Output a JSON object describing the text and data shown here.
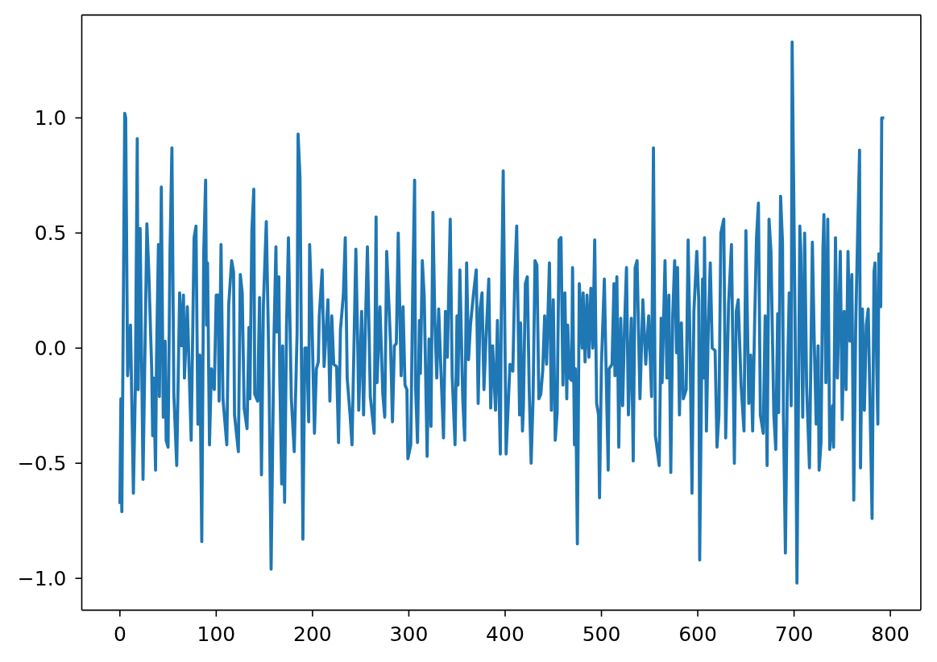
{
  "chart_data": {
    "type": "line",
    "color": "#1f77b4",
    "x": [
      0,
      1,
      2,
      5,
      6,
      8,
      11,
      14,
      16,
      18,
      19,
      21,
      24,
      28,
      30,
      33,
      34,
      35,
      37,
      38,
      40,
      41,
      43,
      45,
      47,
      48,
      50,
      52,
      54,
      56,
      59,
      62,
      64,
      66,
      67,
      70,
      74,
      77,
      79,
      81,
      83,
      85,
      87,
      89,
      90,
      91,
      93,
      95,
      98,
      100,
      102,
      103,
      105,
      107,
      111,
      113,
      116,
      118,
      119,
      123,
      125,
      127,
      129,
      132,
      134,
      135,
      137,
      139,
      140,
      143,
      145,
      147,
      149,
      152,
      154,
      155,
      157,
      160,
      162,
      163,
      165,
      166,
      168,
      169,
      171,
      173,
      175,
      178,
      181,
      184,
      185,
      187,
      190,
      192,
      194,
      196,
      197,
      199,
      202,
      204,
      206,
      207,
      210,
      212,
      216,
      218,
      220,
      222,
      225,
      227,
      229,
      232,
      234,
      236,
      239,
      241,
      245,
      247,
      248,
      251,
      253,
      255,
      257,
      260,
      264,
      266,
      267,
      270,
      273,
      275,
      277,
      281,
      283,
      285,
      287,
      289,
      292,
      294,
      296,
      298,
      299,
      302,
      304,
      306,
      307,
      309,
      311,
      312,
      314,
      316,
      319,
      321,
      323,
      325,
      327,
      329,
      331,
      333,
      336,
      338,
      340,
      343,
      345,
      348,
      350,
      351,
      353,
      356,
      358,
      360,
      362,
      364,
      367,
      370,
      372,
      374,
      376,
      378,
      380,
      383,
      385,
      387,
      390,
      392,
      395,
      396,
      398,
      401,
      405,
      408,
      410,
      412,
      415,
      416,
      418,
      419,
      421,
      423,
      425,
      427,
      429,
      431,
      433,
      435,
      437,
      439,
      441,
      443,
      446,
      448,
      450,
      452,
      454,
      456,
      458,
      460,
      462,
      464,
      465,
      467,
      469,
      470,
      472,
      473,
      475,
      477,
      480,
      481,
      483,
      485,
      487,
      489,
      491,
      493,
      495,
      497,
      498,
      500,
      503,
      505,
      507,
      508,
      511,
      513,
      514,
      516,
      518,
      520,
      522,
      524,
      526,
      528,
      531,
      533,
      535,
      537,
      540,
      543,
      546,
      549,
      551,
      552,
      554,
      556,
      560,
      562,
      563,
      566,
      568,
      570,
      572,
      574,
      576,
      578,
      579,
      581,
      583,
      585,
      588,
      590,
      592,
      594,
      596,
      599,
      601,
      602,
      605,
      606,
      607,
      609,
      611,
      613,
      615,
      618,
      620,
      622,
      624,
      627,
      629,
      632,
      635,
      638,
      640,
      642,
      645,
      648,
      650,
      653,
      655,
      657,
      659,
      661,
      663,
      665,
      668,
      670,
      672,
      674,
      676,
      679,
      681,
      683,
      684,
      686,
      688,
      689,
      691,
      693,
      695,
      697,
      698,
      701,
      703,
      706,
      707,
      709,
      711,
      713,
      716,
      719,
      721,
      723,
      725,
      726,
      728,
      730,
      731,
      733,
      735,
      737,
      740,
      741,
      743,
      745,
      748,
      750,
      752,
      754,
      756,
      758,
      760,
      762,
      764,
      766,
      768,
      769,
      771,
      773,
      775,
      777,
      779,
      781,
      783,
      784,
      786,
      787,
      788,
      790,
      791,
      792
    ],
    "values": [
      -0.67,
      -0.22,
      -0.71,
      1.02,
      1.0,
      -0.12,
      0.1,
      -0.63,
      -0.18,
      0.91,
      -0.18,
      0.52,
      -0.57,
      0.54,
      0.33,
      -0.09,
      -0.38,
      -0.13,
      -0.53,
      -0.04,
      0.45,
      -0.21,
      0.7,
      -0.3,
      0.03,
      -0.4,
      -0.43,
      0.42,
      0.87,
      -0.2,
      -0.51,
      0.24,
      0.01,
      0.23,
      -0.13,
      0.18,
      -0.4,
      0.48,
      0.53,
      -0.33,
      -0.03,
      -0.84,
      0.41,
      0.73,
      0.1,
      0.37,
      -0.42,
      -0.09,
      -0.18,
      0.23,
      0.23,
      -0.23,
      0.45,
      -0.22,
      -0.42,
      0.19,
      0.38,
      0.33,
      -0.29,
      -0.45,
      0.32,
      0.24,
      -0.26,
      -0.35,
      0.09,
      -0.22,
      0.51,
      0.69,
      -0.2,
      -0.23,
      0.22,
      -0.55,
      0.19,
      0.55,
      0.09,
      -0.19,
      -0.96,
      0.05,
      0.44,
      0.07,
      0.31,
      -0.13,
      -0.59,
      0.01,
      -0.67,
      0.09,
      0.48,
      -0.22,
      -0.45,
      0.07,
      0.93,
      0.74,
      -0.83,
      0.0,
      0.0,
      -0.32,
      0.45,
      0.2,
      -0.37,
      -0.09,
      -0.06,
      0.14,
      0.34,
      -0.08,
      0.21,
      -0.23,
      0.14,
      -0.07,
      -0.08,
      -0.41,
      0.08,
      0.23,
      0.48,
      -0.13,
      -0.29,
      -0.42,
      0.43,
      0.0,
      -0.27,
      0.16,
      -0.29,
      0.12,
      0.44,
      -0.21,
      -0.37,
      0.57,
      -0.15,
      0.18,
      -0.2,
      -0.3,
      0.42,
      0.02,
      -0.32,
      0.01,
      0.02,
      0.5,
      -0.12,
      0.18,
      -0.16,
      -0.18,
      -0.48,
      -0.42,
      0.24,
      0.73,
      -0.17,
      -0.41,
      0.12,
      -0.11,
      0.38,
      0.22,
      -0.47,
      0.04,
      -0.34,
      0.59,
      0.12,
      -0.13,
      0.17,
      -0.06,
      -0.39,
      0.16,
      -0.04,
      0.56,
      -0.12,
      -0.42,
      0.14,
      -0.16,
      0.34,
      -0.22,
      -0.4,
      0.37,
      -0.05,
      0.1,
      0.23,
      0.34,
      -0.24,
      0.17,
      0.24,
      -0.18,
      0.03,
      0.3,
      -0.26,
      0.01,
      -0.27,
      0.12,
      -0.46,
      0.14,
      0.77,
      -0.46,
      -0.07,
      -0.1,
      0.3,
      0.53,
      -0.29,
      0.11,
      -0.36,
      -0.25,
      0.28,
      0.31,
      -0.18,
      -0.5,
      -0.22,
      0.38,
      0.36,
      -0.22,
      -0.2,
      -0.1,
      0.14,
      -0.07,
      0.37,
      -0.27,
      0.21,
      -0.4,
      -0.28,
      0.47,
      0.48,
      -0.16,
      0.24,
      -0.22,
      0.1,
      -0.13,
      -0.14,
      0.35,
      -0.42,
      -0.09,
      -0.85,
      0.28,
      0.0,
      0.24,
      -0.06,
      0.23,
      -0.04,
      0.26,
      0.0,
      0.47,
      -0.24,
      -0.29,
      -0.65,
      -0.07,
      0.3,
      -0.13,
      -0.53,
      -0.09,
      -0.07,
      0.28,
      -0.12,
      0.31,
      -0.43,
      0.13,
      -0.25,
      0.1,
      0.35,
      -0.29,
      0.13,
      -0.49,
      0.35,
      0.38,
      -0.22,
      0.21,
      -0.07,
      0.14,
      -0.08,
      -0.21,
      0.87,
      -0.38,
      -0.51,
      0.13,
      -0.15,
      0.38,
      -0.13,
      0.23,
      -0.54,
      0.14,
      0.38,
      -0.02,
      0.35,
      -0.29,
      0.11,
      -0.22,
      -0.18,
      0.47,
      0.01,
      -0.63,
      0.16,
      0.42,
      0.21,
      -0.92,
      0.3,
      -0.13,
      0.48,
      -0.36,
      0.1,
      0.37,
      0.0,
      -0.01,
      -0.43,
      -0.29,
      0.5,
      0.56,
      -0.39,
      0.19,
      0.45,
      -0.5,
      0.16,
      0.21,
      -0.16,
      -0.36,
      0.51,
      -0.24,
      -0.03,
      -0.36,
      0.1,
      0.48,
      0.63,
      -0.29,
      -0.37,
      0.14,
      -0.51,
      0.56,
      0.42,
      -0.29,
      -0.44,
      0.15,
      -0.28,
      0.66,
      0.46,
      -0.3,
      -0.89,
      -0.16,
      0.24,
      -0.25,
      1.33,
      0.14,
      -1.02,
      0.53,
      0.42,
      -0.3,
      0.5,
      -0.16,
      -0.52,
      0.46,
      0.02,
      -0.33,
      0.01,
      -0.53,
      -0.41,
      0.43,
      0.58,
      -0.15,
      0.56,
      -0.44,
      -0.25,
      -0.43,
      0.48,
      -0.13,
      0.42,
      -0.31,
      0.16,
      -0.18,
      0.42,
      0.03,
      0.32,
      -0.66,
      0.1,
      0.49,
      0.86,
      -0.52,
      0.17,
      -0.27,
      0.1,
      0.17,
      -0.27,
      -0.74,
      0.33,
      0.37,
      -0.11,
      -0.33,
      0.41,
      0.18,
      1.0,
      1.0
    ],
    "xlim": [
      -39.6,
      831.6
    ],
    "ylim": [
      -1.138,
      1.447
    ],
    "xticks": [
      0,
      100,
      200,
      300,
      400,
      500,
      600,
      700,
      800
    ],
    "yticks": [
      {
        "value": -1,
        "label": "−1.0"
      },
      {
        "value": -0.5,
        "label": "−0.5"
      },
      {
        "value": 0,
        "label": "0.0"
      },
      {
        "value": 0.5,
        "label": "0.5"
      },
      {
        "value": 1,
        "label": "1.0"
      }
    ]
  }
}
